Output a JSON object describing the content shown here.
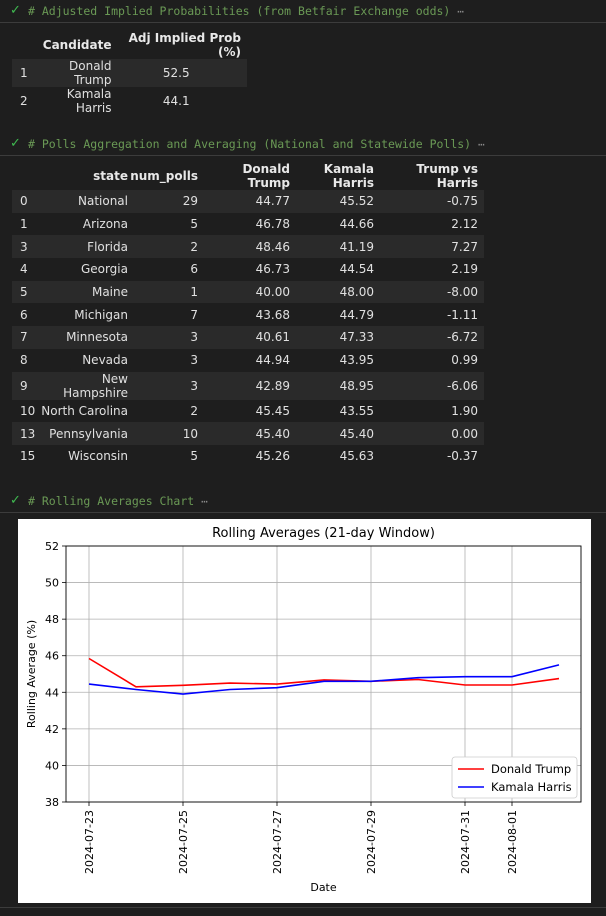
{
  "cells": [
    {
      "code": "# Adjusted Implied Probabilities (from Betfair Exchange odds)"
    },
    {
      "code": "# Polls Aggregation and Averaging (National and Statewide Polls)"
    },
    {
      "code": "# Rolling Averages Chart"
    }
  ],
  "ellipsis": "⋯",
  "table1": {
    "columns": [
      "",
      "Candidate",
      "Adj Implied Prob (%)"
    ],
    "rows": [
      [
        "1",
        "Donald Trump",
        "52.5"
      ],
      [
        "2",
        "Kamala Harris",
        "44.1"
      ]
    ]
  },
  "table2": {
    "columns": [
      "",
      "state",
      "num_polls",
      "Donald Trump",
      "Kamala Harris",
      "Trump vs Harris"
    ],
    "rows": [
      [
        "0",
        "National",
        "29",
        "44.77",
        "45.52",
        "-0.75"
      ],
      [
        "1",
        "Arizona",
        "5",
        "46.78",
        "44.66",
        "2.12"
      ],
      [
        "3",
        "Florida",
        "2",
        "48.46",
        "41.19",
        "7.27"
      ],
      [
        "4",
        "Georgia",
        "6",
        "46.73",
        "44.54",
        "2.19"
      ],
      [
        "5",
        "Maine",
        "1",
        "40.00",
        "48.00",
        "-8.00"
      ],
      [
        "6",
        "Michigan",
        "7",
        "43.68",
        "44.79",
        "-1.11"
      ],
      [
        "7",
        "Minnesota",
        "3",
        "40.61",
        "47.33",
        "-6.72"
      ],
      [
        "8",
        "Nevada",
        "3",
        "44.94",
        "43.95",
        "0.99"
      ],
      [
        "9",
        "New Hampshire",
        "3",
        "42.89",
        "48.95",
        "-6.06"
      ],
      [
        "10",
        "North Carolina",
        "2",
        "45.45",
        "43.55",
        "1.90"
      ],
      [
        "13",
        "Pennsylvania",
        "10",
        "45.40",
        "45.40",
        "0.00"
      ],
      [
        "15",
        "Wisconsin",
        "5",
        "45.26",
        "45.63",
        "-0.37"
      ]
    ]
  },
  "chart_data": {
    "type": "line",
    "title": "Rolling Averages (21-day Window)",
    "xlabel": "Date",
    "ylabel": "Rolling Average (%)",
    "x": [
      "2024-07-23",
      "2024-07-24",
      "2024-07-25",
      "2024-07-26",
      "2024-07-27",
      "2024-07-28",
      "2024-07-29",
      "2024-07-30",
      "2024-07-31",
      "2024-08-01",
      "2024-08-02"
    ],
    "xticks": [
      "2024-07-23",
      "2024-07-25",
      "2024-07-27",
      "2024-07-29",
      "2024-07-31",
      "2024-08-01"
    ],
    "ylim": [
      38,
      52
    ],
    "yticks": [
      38,
      40,
      42,
      44,
      46,
      48,
      50,
      52
    ],
    "grid": true,
    "legend_position": "lower-right",
    "series": [
      {
        "name": "Donald Trump",
        "color": "#ff0000",
        "values": [
          45.85,
          44.3,
          44.38,
          44.5,
          44.45,
          44.68,
          44.6,
          44.7,
          44.4,
          44.4,
          44.75
        ]
      },
      {
        "name": "Kamala Harris",
        "color": "#0000ff",
        "values": [
          44.45,
          44.15,
          43.9,
          44.15,
          44.25,
          44.6,
          44.6,
          44.8,
          44.85,
          44.85,
          45.5
        ]
      }
    ]
  }
}
